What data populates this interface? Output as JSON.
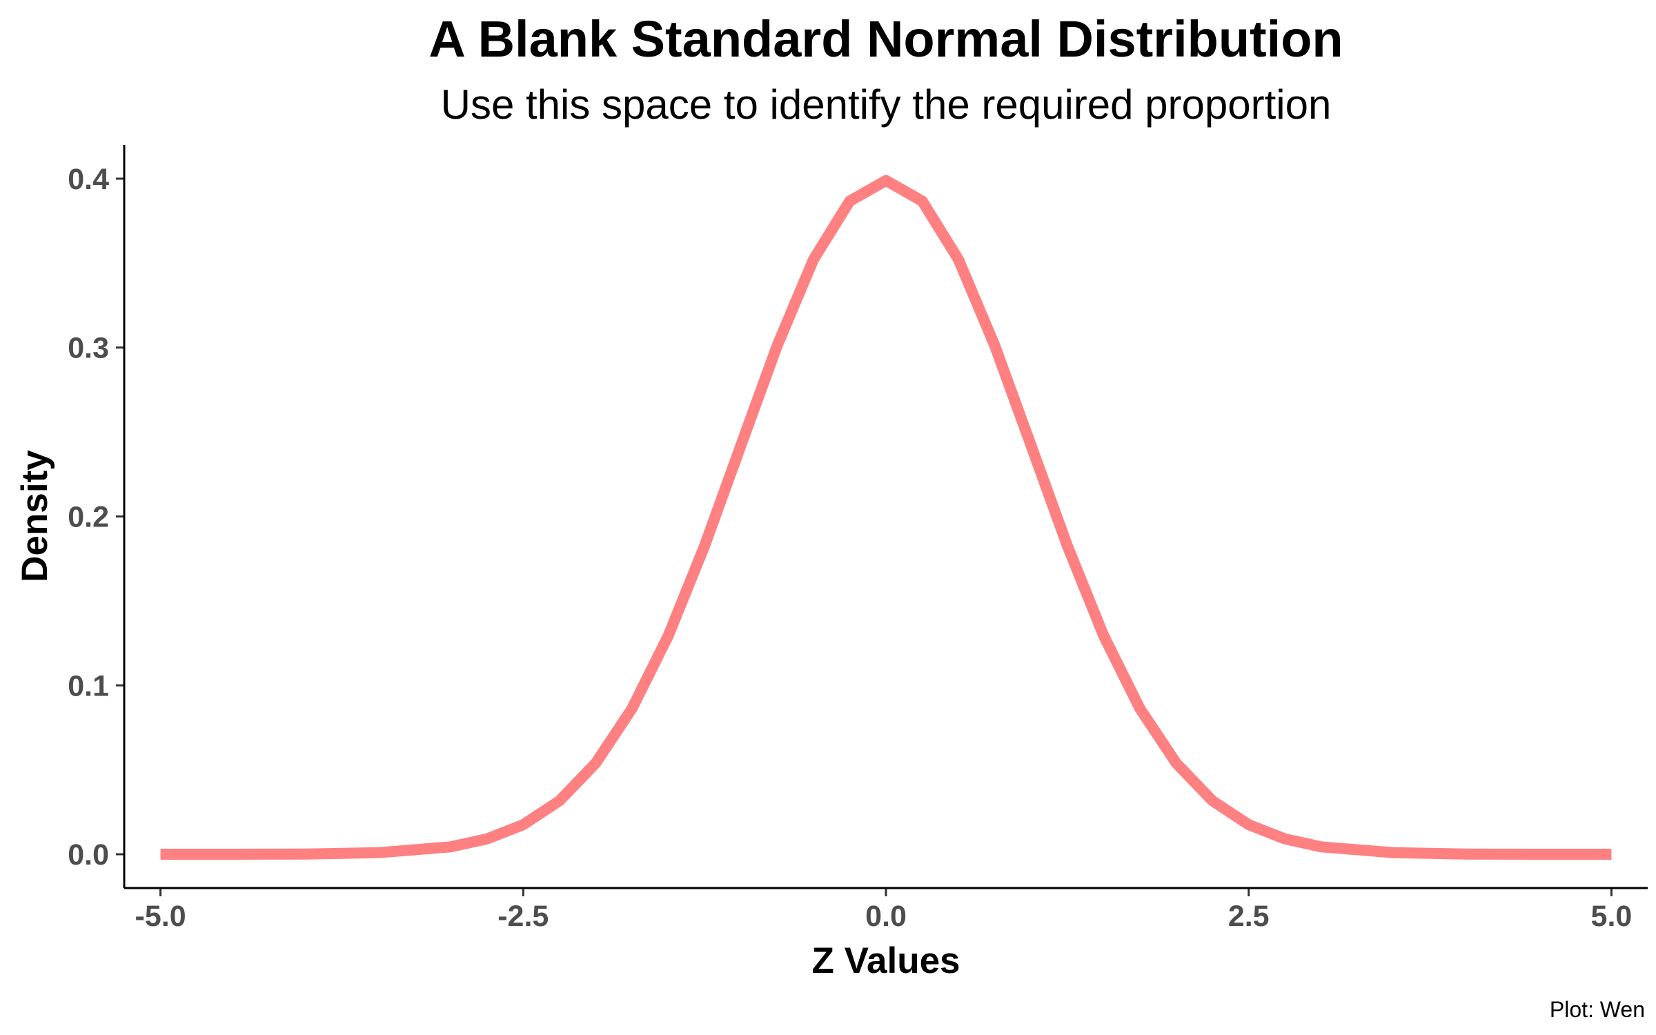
{
  "chart_data": {
    "type": "line",
    "title": "A Blank Standard Normal Distribution",
    "subtitle": "Use this space to identify the required proportion",
    "xlabel": "Z Values",
    "ylabel": "Density",
    "caption": "Plot: Wen",
    "xlim": [
      -5.25,
      5.25
    ],
    "ylim": [
      -0.02,
      0.42
    ],
    "x_ticks": [
      -5.0,
      -2.5,
      0.0,
      2.5,
      5.0
    ],
    "x_tick_labels": [
      "-5.0",
      "-2.5",
      "0.0",
      "2.5",
      "5.0"
    ],
    "y_ticks": [
      0.0,
      0.1,
      0.2,
      0.3,
      0.4
    ],
    "y_tick_labels": [
      "0.0",
      "0.1",
      "0.2",
      "0.3",
      "0.4"
    ],
    "grid": false,
    "series": [
      {
        "color": "#ff8080",
        "x": [
          -5,
          -4.5,
          -4,
          -3.5,
          -3,
          -2.75,
          -2.5,
          -2.25,
          -2,
          -1.75,
          -1.5,
          -1.25,
          -1,
          -0.75,
          -0.5,
          -0.25,
          0,
          0.25,
          0.5,
          0.75,
          1,
          1.25,
          1.5,
          1.75,
          2,
          2.25,
          2.5,
          2.75,
          3,
          3.5,
          4,
          4.5,
          5
        ],
        "y": [
          0.0,
          0.0,
          0.0001,
          0.0009,
          0.0044,
          0.0091,
          0.0175,
          0.0317,
          0.054,
          0.0863,
          0.1295,
          0.1826,
          0.242,
          0.3011,
          0.3521,
          0.3867,
          0.3989,
          0.3867,
          0.3521,
          0.3011,
          0.242,
          0.1826,
          0.1295,
          0.0863,
          0.054,
          0.0317,
          0.0175,
          0.0091,
          0.0044,
          0.0009,
          0.0001,
          0.0,
          0.0
        ]
      }
    ]
  }
}
